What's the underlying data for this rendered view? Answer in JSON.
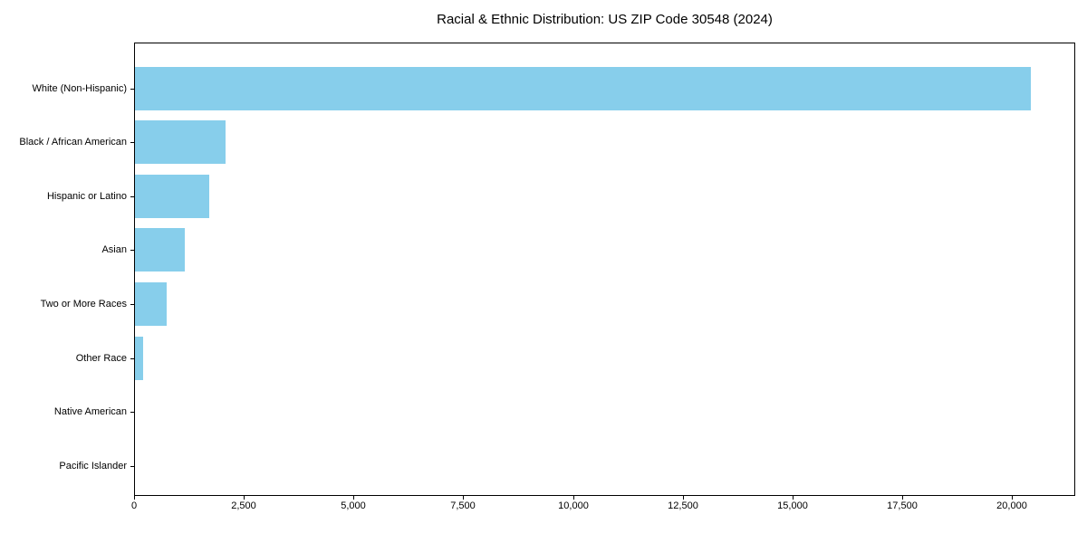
{
  "chart_data": {
    "type": "bar",
    "orientation": "horizontal",
    "title": "Racial & Ethnic Distribution: US ZIP Code 30548 (2024)",
    "categories": [
      "White (Non-Hispanic)",
      "Black / African American",
      "Hispanic or Latino",
      "Asian",
      "Two or More Races",
      "Other Race",
      "Native American",
      "Pacific Islander"
    ],
    "values": [
      20400,
      2070,
      1690,
      1140,
      720,
      190,
      0,
      0
    ],
    "xlabel": "",
    "ylabel": "",
    "xlim": [
      0,
      21400
    ],
    "xticks": [
      0,
      2500,
      5000,
      7500,
      10000,
      12500,
      15000,
      17500,
      20000
    ],
    "xtick_labels": [
      "0",
      "2,500",
      "5,000",
      "7,500",
      "10,000",
      "12,500",
      "15,000",
      "17,500",
      "20,000"
    ],
    "grid": false,
    "legend": null,
    "colors": {
      "bar": "#87CEEB",
      "spine": "#000000",
      "text": "#000000",
      "background": "#ffffff"
    }
  }
}
